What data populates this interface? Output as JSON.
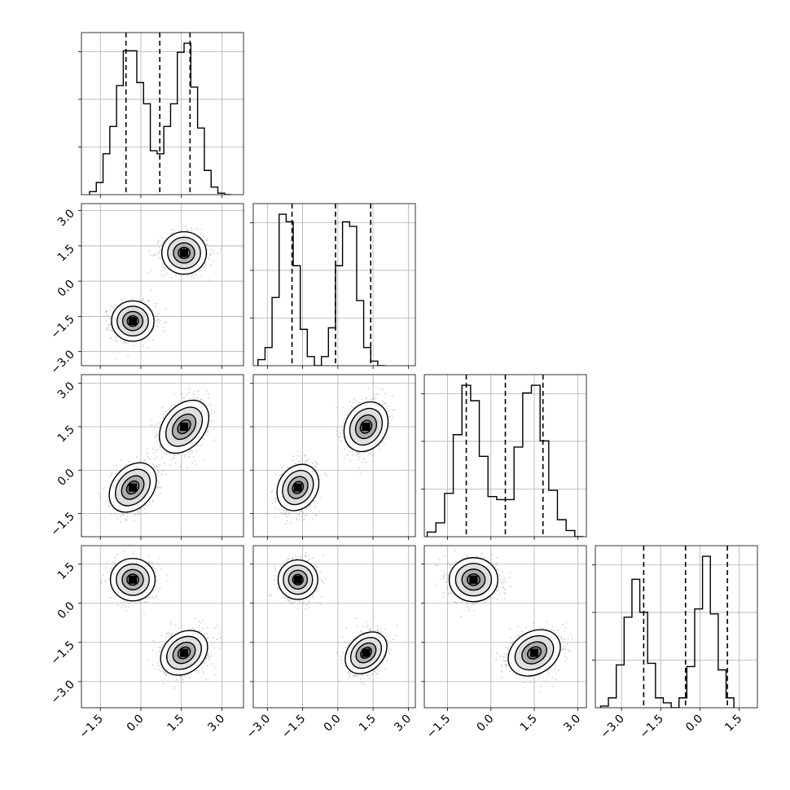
{
  "chart_data": {
    "type": "corner",
    "ndim": 4,
    "grid": true,
    "colors": {
      "contour": "#000000",
      "density": "#000000",
      "points": "#9a9a9a",
      "grid": "#b0b0b0"
    },
    "axes": [
      {
        "range": [
          -2.2,
          3.8
        ],
        "ticks": [
          -1.5,
          0.0,
          1.5,
          3.0
        ],
        "tick_labels": [
          "−1.5",
          "0.0",
          "1.5",
          "3.0"
        ]
      },
      {
        "range": [
          -3.6,
          3.3
        ],
        "ticks": [
          -3.0,
          -1.5,
          0.0,
          1.5,
          3.0
        ],
        "tick_labels": [
          "−3.0",
          "−1.5",
          "0.0",
          "1.5",
          "3.0"
        ]
      },
      {
        "range": [
          -2.3,
          3.3
        ],
        "ticks": [
          -1.5,
          0.0,
          1.5,
          3.0
        ],
        "tick_labels": [
          "−1.5",
          "0.0",
          "1.5",
          "3.0"
        ]
      },
      {
        "range": [
          -4.0,
          2.2
        ],
        "ticks": [
          -3.0,
          -1.5,
          0.0,
          1.5
        ],
        "tick_labels": [
          "−3.0",
          "−1.5",
          "0.0",
          "1.5"
        ]
      }
    ],
    "modes": [
      {
        "weight": 0.5,
        "mean": [
          -0.3,
          -1.7,
          -0.6,
          0.9
        ],
        "std": [
          0.4,
          0.38,
          0.42,
          0.38
        ],
        "corr": [
          [
            1,
            0,
            0.3,
            0
          ],
          [
            0,
            1,
            0.2,
            0
          ],
          [
            0.3,
            0.2,
            1,
            0
          ],
          [
            0,
            0,
            0,
            1
          ]
        ]
      },
      {
        "weight": 0.5,
        "mean": [
          1.6,
          1.2,
          1.5,
          -1.9
        ],
        "std": [
          0.42,
          0.4,
          0.45,
          0.4
        ],
        "corr": [
          [
            1,
            0,
            0.35,
            0.25
          ],
          [
            0,
            1,
            0.2,
            0.3
          ],
          [
            0.35,
            0.2,
            1,
            0.25
          ],
          [
            0.25,
            0.3,
            0.25,
            1
          ]
        ]
      }
    ],
    "quantiles": [
      [
        -0.55,
        0.7,
        1.82
      ],
      [
        -1.95,
        -0.1,
        1.4
      ],
      [
        -0.85,
        0.5,
        1.8
      ],
      [
        -2.15,
        -0.55,
        1.05
      ]
    ],
    "histograms": [
      {
        "edges_start": -1.9,
        "bin_width": 0.25,
        "counts": [
          2,
          8,
          27,
          45,
          72,
          95,
          95,
          74,
          60,
          29,
          27,
          45,
          60,
          94,
          100,
          71,
          44,
          16,
          5,
          1,
          0
        ]
      },
      {
        "edges_start": -3.4,
        "bin_width": 0.3,
        "counts": [
          4,
          12,
          45,
          100,
          95,
          66,
          24,
          6,
          0,
          6,
          25,
          66,
          95,
          92,
          43,
          12,
          3,
          0
        ]
      },
      {
        "edges_start": -2.2,
        "bin_width": 0.3,
        "counts": [
          3,
          9,
          28,
          66,
          98,
          88,
          52,
          26,
          24,
          24,
          58,
          93,
          98,
          62,
          30,
          11,
          4,
          0
        ]
      },
      {
        "edges_start": -3.8,
        "bin_width": 0.3,
        "counts": [
          1,
          6,
          26,
          55,
          78,
          58,
          27,
          6,
          3,
          0,
          6,
          25,
          60,
          92,
          57,
          23,
          6
        ]
      }
    ]
  }
}
